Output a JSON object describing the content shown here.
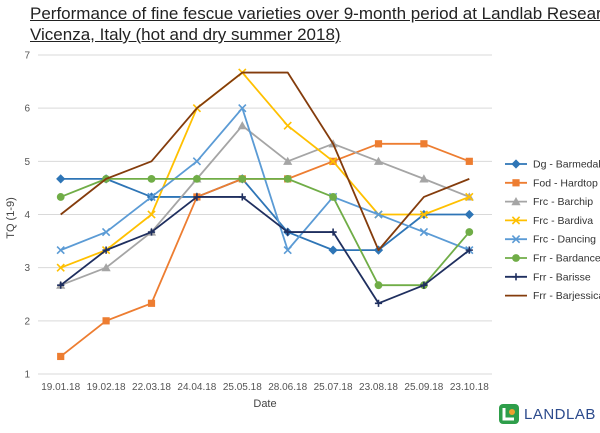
{
  "chart_data": {
    "type": "line",
    "title_line1": "Performance of fine fescue varieties over 9-month period at Landlab Research,",
    "title_line2": "Vicenza, Italy (hot and dry summer 2018)",
    "xlabel": "Date",
    "ylabel": "TQ (1-9)",
    "ylim": [
      1,
      7
    ],
    "yticks": [
      1,
      2,
      3,
      4,
      5,
      6,
      7
    ],
    "grid": true,
    "legend_position": "right",
    "categories": [
      "19.01.18",
      "19.02.18",
      "22.03.18",
      "24.04.18",
      "25.05.18",
      "28.06.18",
      "25.07.18",
      "23.08.18",
      "25.09.18",
      "23.10.18"
    ],
    "series": [
      {
        "name": "Dg - Barmedal",
        "color": "#2e75b6",
        "marker": "diamond",
        "values": [
          4.67,
          4.67,
          4.33,
          4.33,
          4.67,
          3.67,
          3.33,
          3.33,
          4.0,
          4.0
        ]
      },
      {
        "name": "Fod - Hardtop",
        "color": "#ed7d31",
        "marker": "square",
        "values": [
          1.33,
          2.0,
          2.33,
          4.33,
          4.67,
          4.67,
          5.0,
          5.33,
          5.33,
          5.0
        ]
      },
      {
        "name": "Frc - Barchip",
        "color": "#a5a5a5",
        "marker": "triangle",
        "values": [
          2.67,
          3.0,
          3.67,
          4.67,
          5.67,
          5.0,
          5.33,
          5.0,
          4.67,
          4.33
        ]
      },
      {
        "name": "Frc - Bardiva",
        "color": "#ffc000",
        "marker": "x",
        "values": [
          3.0,
          3.33,
          4.0,
          6.0,
          6.67,
          5.67,
          5.0,
          4.0,
          4.0,
          4.33
        ]
      },
      {
        "name": "Frc - Dancing",
        "color": "#5b9bd5",
        "marker": "x",
        "values": [
          3.33,
          3.67,
          4.33,
          5.0,
          6.0,
          3.33,
          4.33,
          4.0,
          3.67,
          3.33
        ]
      },
      {
        "name": "Frr - Bardance",
        "color": "#70ad47",
        "marker": "circle",
        "values": [
          4.33,
          4.67,
          4.67,
          4.67,
          4.67,
          4.67,
          4.33,
          2.67,
          2.67,
          3.67
        ]
      },
      {
        "name": "Frr - Barisse",
        "color": "#1f2f5f",
        "marker": "plus",
        "values": [
          2.67,
          3.33,
          3.67,
          4.33,
          4.33,
          3.67,
          3.67,
          2.33,
          2.67,
          3.33
        ]
      },
      {
        "name": "Frr - Barjessica",
        "color": "#843c0c",
        "marker": "none",
        "values": [
          4.0,
          4.67,
          5.0,
          6.0,
          6.67,
          6.67,
          5.33,
          3.33,
          4.33,
          4.67
        ]
      }
    ]
  },
  "logo": {
    "text": "LANDLAB",
    "color": "#2b4a8c",
    "accent": "#f0a030"
  }
}
